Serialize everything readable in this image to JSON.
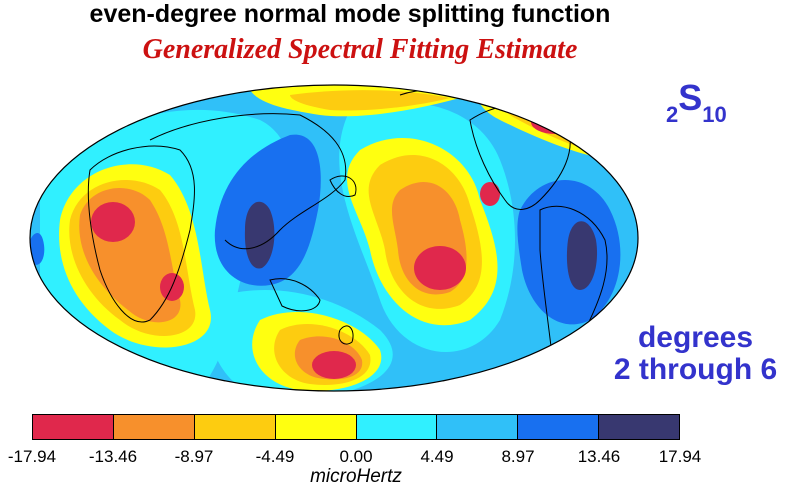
{
  "title": "even-degree normal mode splitting function",
  "subtitle": "Generalized Spectral Fitting Estimate",
  "mode": {
    "prefix": "2",
    "letter": "S",
    "suffix": "10"
  },
  "degrees_line1": "degrees",
  "degrees_line2": "2 through 6",
  "colorbar": {
    "unit": "microHertz",
    "ticks": [
      "-17.94",
      "-13.46",
      "-8.97",
      "-4.49",
      "0.00",
      "4.49",
      "8.97",
      "13.46",
      "17.94"
    ],
    "colors": [
      "#e0284c",
      "#f7902c",
      "#fdcc10",
      "#ffff10",
      "#30f0ff",
      "#30c0f8",
      "#1870f0",
      "#383870"
    ]
  },
  "map": {
    "projection": "Hammer-Aitoff (global)",
    "background_color": "#30c0f8"
  }
}
